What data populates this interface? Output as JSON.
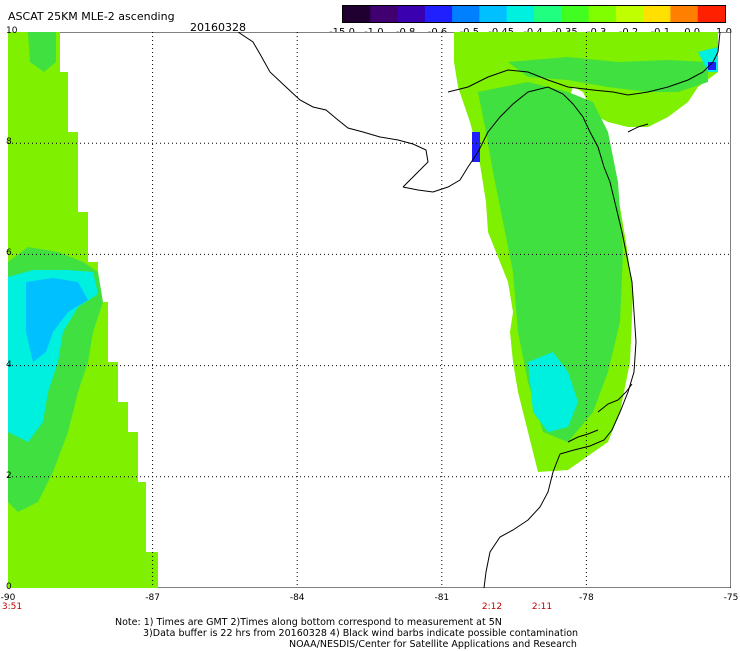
{
  "header": {
    "title": "ASCAT 25KM MLE-2 ascending",
    "date": "20160328"
  },
  "colorbar": {
    "labels": [
      "-15.0",
      "-1.0",
      "-0.8",
      "-0.6",
      "-0.5",
      "-0.45",
      "-0.4",
      "-0.35",
      "-0.3",
      "-0.2",
      "-0.1",
      "0.0",
      "1.0"
    ],
    "colors": [
      "#200030",
      "#400070",
      "#3a00b0",
      "#2020ff",
      "#0080ff",
      "#00c0ff",
      "#00f0e0",
      "#20ff80",
      "#40ff20",
      "#80ff00",
      "#c0ff00",
      "#ffe000",
      "#ff8000",
      "#ff2000"
    ]
  },
  "axes": {
    "x_ticks": [
      "-90",
      "-87",
      "-84",
      "-81",
      "-78",
      "-75"
    ],
    "y_ticks": [
      "0",
      "2",
      "4",
      "6",
      "8",
      "10"
    ]
  },
  "pass_times": [
    "3:51",
    "2:12",
    "2:11"
  ],
  "footer": {
    "note_line1": "Note: 1) Times are GMT 2)Times along bottom correspond to measurement at 5N",
    "note_line2": "3)Data buffer is 22 hrs from 20160328 4) Black wind barbs indicate possible contamination",
    "credit": "NOAA/NESDIS/Center for Satellite Applications and Research"
  },
  "colors": {
    "swath_green": "#7ef000",
    "swath_mid": "#40e040",
    "swath_cyan": "#00f0e0",
    "swath_blue": "#2020ff",
    "time_red": "#c00000"
  }
}
